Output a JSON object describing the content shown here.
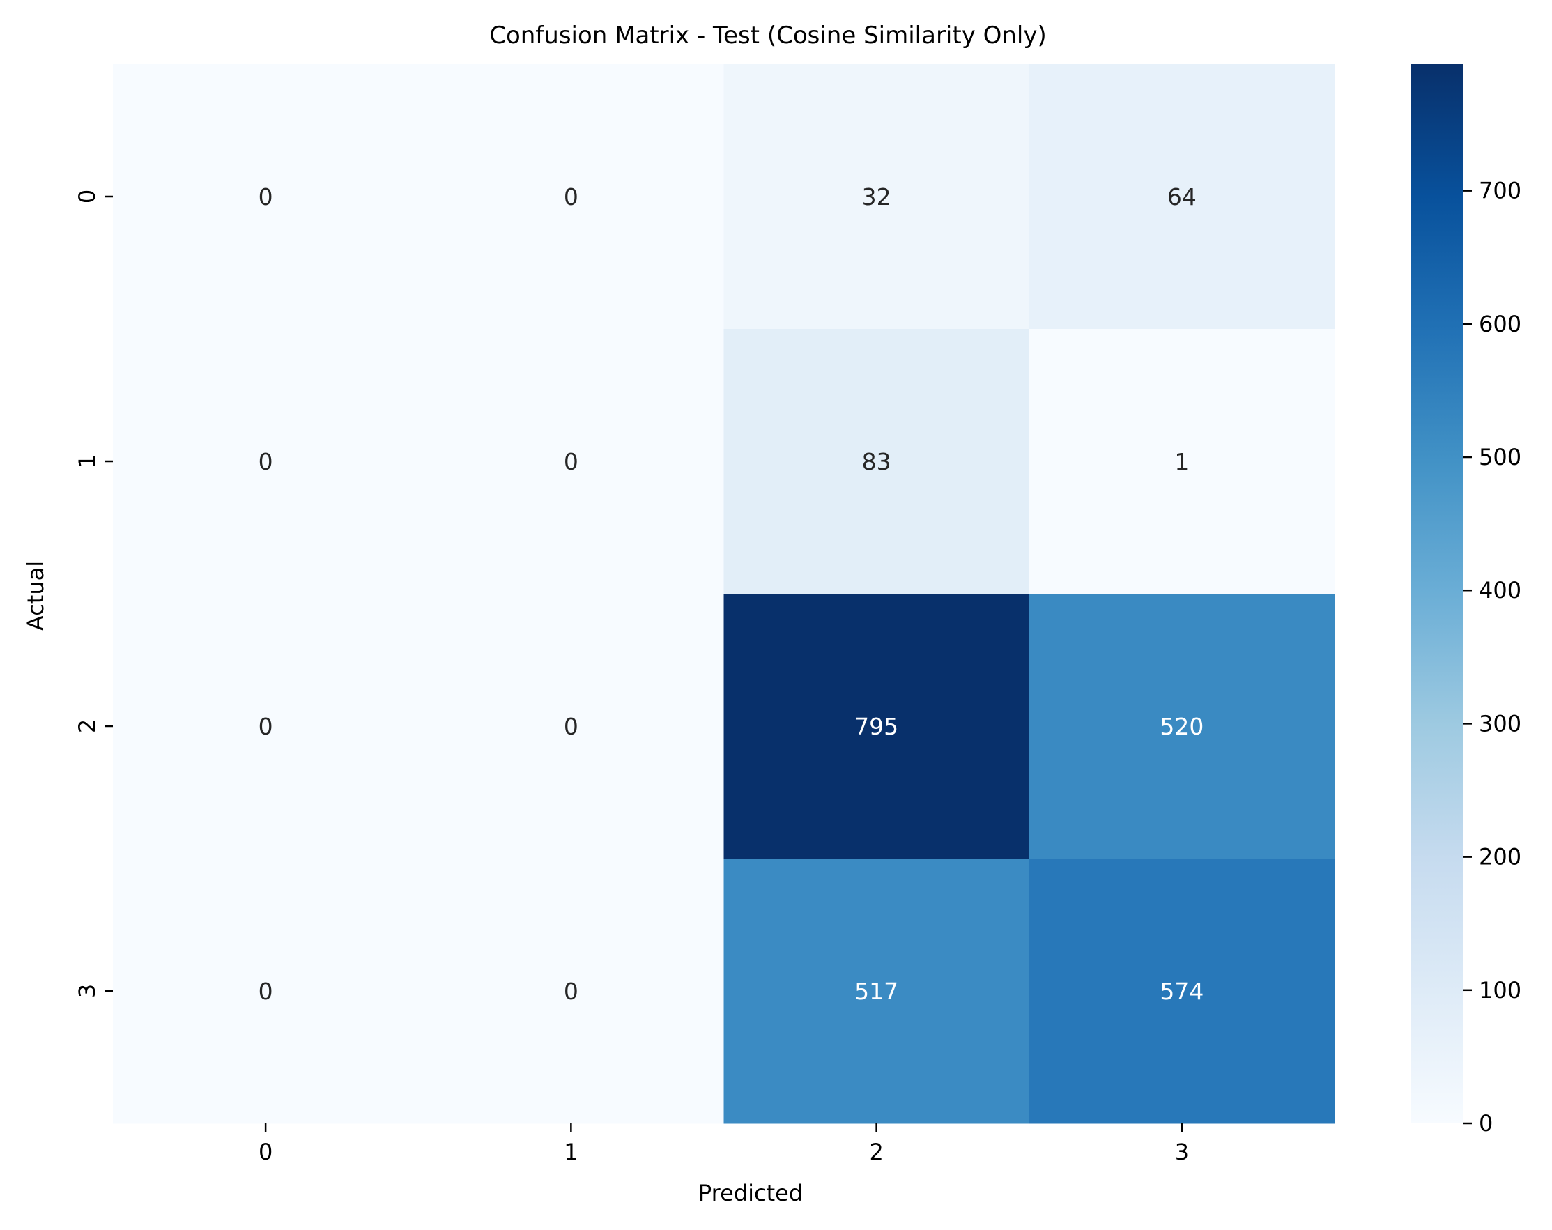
{
  "chart_data": {
    "type": "heatmap",
    "title": "Confusion Matrix - Test (Cosine Similarity Only)",
    "xlabel": "Predicted",
    "ylabel": "Actual",
    "x_categories": [
      "0",
      "1",
      "2",
      "3"
    ],
    "y_categories": [
      "0",
      "1",
      "2",
      "3"
    ],
    "values": [
      [
        0,
        0,
        32,
        64
      ],
      [
        0,
        0,
        83,
        1
      ],
      [
        0,
        0,
        795,
        520
      ],
      [
        0,
        0,
        517,
        574
      ]
    ],
    "colormap": "Blues",
    "colormap_stops": [
      "#f7fbff",
      "#deebf7",
      "#c6dbef",
      "#9ecae1",
      "#6baed6",
      "#4292c6",
      "#2171b5",
      "#08519c",
      "#08306b"
    ],
    "colorbar": {
      "range": [
        0,
        795
      ],
      "ticks": [
        "0",
        "100",
        "200",
        "300",
        "400",
        "500",
        "600",
        "700"
      ]
    },
    "annotation_colors": {
      "light_cell_text": "#262626",
      "dark_cell_text": "#ffffff"
    },
    "grid": false,
    "legend": "colorbar-right"
  }
}
